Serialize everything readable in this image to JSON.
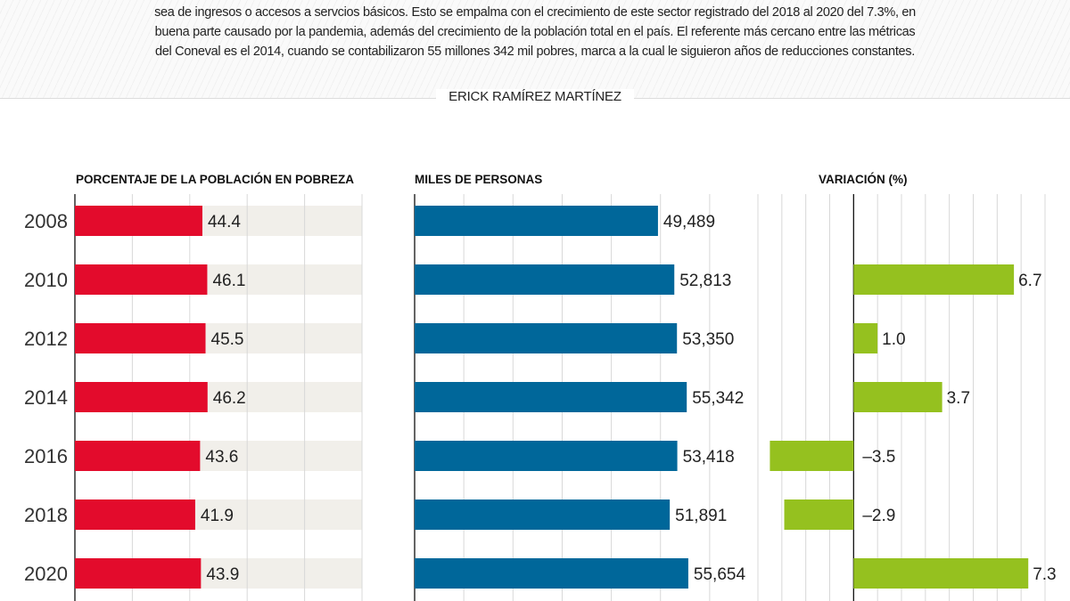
{
  "intro": {
    "lines": [
      "sea de ingresos o accesos a servcios básicos. Esto se empalma con el crecimiento de este sector registrado del 2018 al 2020 del 7.3%, en",
      "buena parte causado por la pandemia, además del crecimiento de la población total en el país. El referente más cercano entre las métricas",
      "del Coneval es el 2014, cuando se contabilizaron 55 millones 342 mil pobres, marca a la cual le siguieron años de reducciones constantes."
    ],
    "author": "ERICK RAMÍREZ MARTÍNEZ"
  },
  "colors": {
    "red": "#e30b2c",
    "blue": "#00679a",
    "green": "#95c11f",
    "track": "#f1efea",
    "grid": "#d8d8d8"
  },
  "chart_data": [
    {
      "type": "bar",
      "title": "PORCENTAJE DE LA POBLACIÓN EN POBREZA",
      "categories": [
        "2008",
        "2010",
        "2012",
        "2014",
        "2016",
        "2018",
        "2020"
      ],
      "values": [
        44.4,
        46.1,
        45.5,
        46.2,
        43.6,
        41.9,
        43.9
      ],
      "labels": [
        "44.4",
        "46.1",
        "45.5",
        "46.2",
        "43.6",
        "41.9",
        "43.9"
      ],
      "xlim": [
        0,
        100
      ],
      "grid_step": 20
    },
    {
      "type": "bar",
      "title": "MILES DE PERSONAS",
      "categories": [
        "2008",
        "2010",
        "2012",
        "2014",
        "2016",
        "2018",
        "2020"
      ],
      "values": [
        49489,
        52813,
        53350,
        55342,
        53418,
        51891,
        55654
      ],
      "labels": [
        "49,489",
        "52,813",
        "53,350",
        "55,342",
        "53,418",
        "51,891",
        "55,654"
      ],
      "xlim": [
        0,
        68000
      ],
      "grid_step": 10000
    },
    {
      "type": "bar",
      "title": "VARIACIÓN (%)",
      "categories": [
        "2008",
        "2010",
        "2012",
        "2014",
        "2016",
        "2018",
        "2020"
      ],
      "values": [
        null,
        6.7,
        1.0,
        3.7,
        -3.5,
        -2.9,
        7.3
      ],
      "labels": [
        "",
        "6.7",
        "1.0",
        "3.7",
        "–3.5",
        "–2.9",
        "7.3"
      ],
      "xlim": [
        -4,
        8
      ],
      "grid_step": 1
    }
  ]
}
